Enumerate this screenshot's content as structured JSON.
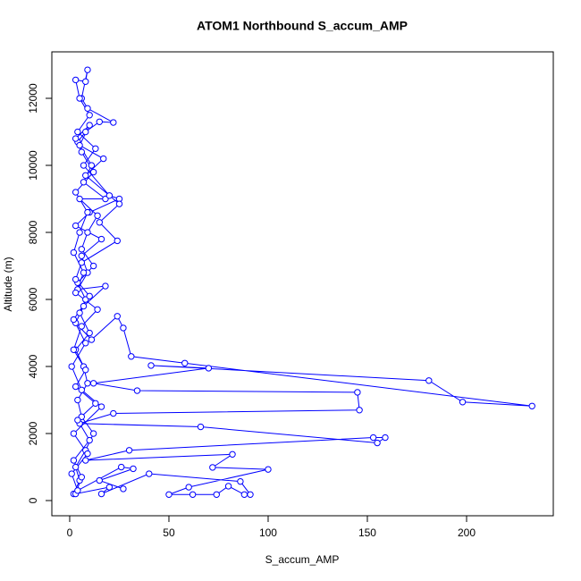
{
  "chart_data": {
    "type": "line",
    "title": "ATOM1 Northbound S_accum_AMP",
    "x_label": "S_accum_AMP",
    "y_label": "Altitude (m)",
    "color": "#0000ff",
    "markers": true,
    "xlim": [
      -9,
      243.7
    ],
    "ylim": [
      -453,
      13387
    ],
    "xticks": [
      0,
      50,
      100,
      150,
      200
    ],
    "yticks": [
      0,
      2000,
      4000,
      6000,
      8000,
      10000,
      12000
    ],
    "x": [
      2,
      5,
      3,
      8,
      12,
      6,
      4,
      9,
      7,
      3,
      10,
      5,
      8,
      4,
      12,
      6,
      9,
      14,
      5,
      18,
      7,
      11,
      4,
      8,
      15,
      22,
      9,
      6,
      9,
      8,
      3,
      5,
      10,
      4,
      13,
      7,
      20,
      25,
      10,
      3,
      16,
      6,
      9,
      4,
      18,
      7,
      3,
      11,
      24,
      27,
      31,
      58,
      233,
      198,
      181,
      41,
      70,
      12,
      34,
      145,
      146,
      22,
      5,
      66,
      155,
      159,
      153,
      30,
      8,
      82,
      72,
      100,
      60,
      50,
      62,
      74,
      80,
      88,
      91,
      86,
      40,
      16,
      20,
      3,
      6,
      2,
      10,
      4,
      13,
      3,
      8,
      2,
      6,
      14,
      3,
      7,
      2,
      5,
      9,
      3,
      12,
      6,
      3,
      10,
      5,
      17,
      8,
      25,
      15,
      24,
      6,
      3,
      10,
      2,
      8,
      1,
      6,
      16,
      2,
      9,
      1,
      4,
      26,
      32,
      15,
      27
    ],
    "values": [
      200,
      600,
      1000,
      1500,
      2000,
      2500,
      3000,
      3500,
      4000,
      4500,
      5000,
      5600,
      6000,
      6500,
      7000,
      7500,
      8000,
      8500,
      9000,
      9000,
      9500,
      10000,
      10700,
      11000,
      11300,
      11280,
      11700,
      12000,
      12850,
      12500,
      12550,
      12000,
      11500,
      11000,
      10500,
      10000,
      9100,
      9000,
      8600,
      8200,
      7800,
      7300,
      6800,
      6300,
      6400,
      5800,
      5300,
      4800,
      5500,
      5150,
      4300,
      4100,
      2820,
      2940,
      3580,
      4030,
      3950,
      3500,
      3280,
      3230,
      2700,
      2600,
      2300,
      2200,
      1720,
      1880,
      1880,
      1500,
      1200,
      1380,
      990,
      930,
      400,
      180,
      180,
      180,
      430,
      180,
      180,
      570,
      800,
      200,
      400,
      200,
      700,
      1200,
      1800,
      2400,
      2900,
      3400,
      3900,
      4500,
      5200,
      5700,
      6200,
      6800,
      7400,
      8000,
      8600,
      9200,
      9800,
      10400,
      10800,
      11200,
      10600,
      10200,
      9700,
      8850,
      8300,
      7750,
      7100,
      6600,
      6100,
      5400,
      4700,
      4000,
      3300,
      2800,
      2000,
      1400,
      800,
      300,
      1000,
      950,
      600,
      350
    ]
  }
}
